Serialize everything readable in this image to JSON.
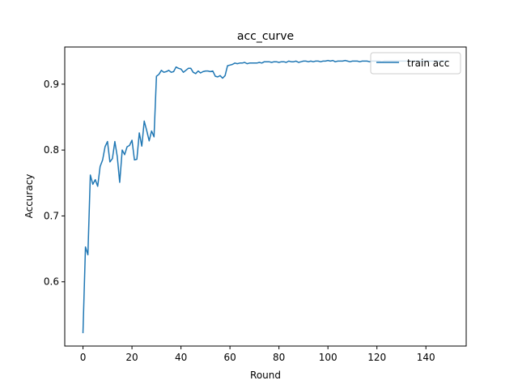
{
  "chart_data": {
    "type": "line",
    "title": "acc_curve",
    "xlabel": "Round",
    "ylabel": "Accuracy",
    "xlim": [
      -7.45,
      156.45
    ],
    "ylim": [
      0.5025,
      0.9564
    ],
    "xticks": [
      0,
      20,
      40,
      60,
      80,
      100,
      120,
      140
    ],
    "yticks": [
      0.6,
      0.7,
      0.8,
      0.9
    ],
    "xtick_labels": [
      "0",
      "20",
      "40",
      "60",
      "80",
      "100",
      "120",
      "140"
    ],
    "ytick_labels": [
      "0.6",
      "0.7",
      "0.8",
      "0.9"
    ],
    "grid": false,
    "legend_position": "top-right",
    "color": "#1f77b4",
    "series": [
      {
        "name": "train acc",
        "x": [
          0,
          1,
          2,
          3,
          4,
          5,
          6,
          7,
          8,
          9,
          10,
          11,
          12,
          13,
          14,
          15,
          16,
          17,
          18,
          19,
          20,
          21,
          22,
          23,
          24,
          25,
          26,
          27,
          28,
          29,
          30,
          31,
          32,
          33,
          34,
          35,
          36,
          37,
          38,
          39,
          40,
          41,
          42,
          43,
          44,
          45,
          46,
          47,
          48,
          49,
          50,
          51,
          52,
          53,
          54,
          55,
          56,
          57,
          58,
          59,
          60,
          61,
          62,
          63,
          64,
          65,
          66,
          67,
          68,
          69,
          70,
          71,
          72,
          73,
          74,
          75,
          76,
          77,
          78,
          79,
          80,
          81,
          82,
          83,
          84,
          85,
          86,
          87,
          88,
          89,
          90,
          91,
          92,
          93,
          94,
          95,
          96,
          97,
          98,
          99,
          100,
          101,
          102,
          103,
          104,
          105,
          106,
          107,
          108,
          109,
          110,
          111,
          112,
          113,
          114,
          115,
          116,
          117,
          118,
          119,
          120,
          121,
          122,
          123,
          124,
          125,
          126,
          127,
          128,
          129,
          130,
          131,
          132,
          133,
          134,
          135,
          136,
          137,
          138,
          139,
          140,
          141,
          142,
          143,
          144,
          145,
          146,
          147,
          148,
          149
        ],
        "values": [
          0.522,
          0.653,
          0.641,
          0.762,
          0.748,
          0.755,
          0.745,
          0.775,
          0.785,
          0.805,
          0.813,
          0.782,
          0.787,
          0.813,
          0.79,
          0.751,
          0.8,
          0.793,
          0.805,
          0.807,
          0.815,
          0.785,
          0.786,
          0.826,
          0.806,
          0.844,
          0.83,
          0.814,
          0.829,
          0.82,
          0.912,
          0.915,
          0.921,
          0.918,
          0.919,
          0.921,
          0.918,
          0.919,
          0.926,
          0.924,
          0.923,
          0.918,
          0.921,
          0.924,
          0.924,
          0.918,
          0.916,
          0.92,
          0.917,
          0.919,
          0.92,
          0.92,
          0.919,
          0.92,
          0.912,
          0.911,
          0.913,
          0.909,
          0.913,
          0.928,
          0.929,
          0.93,
          0.932,
          0.931,
          0.932,
          0.932,
          0.933,
          0.931,
          0.932,
          0.932,
          0.932,
          0.932,
          0.933,
          0.932,
          0.934,
          0.934,
          0.934,
          0.933,
          0.934,
          0.934,
          0.933,
          0.934,
          0.934,
          0.933,
          0.935,
          0.934,
          0.934,
          0.935,
          0.933,
          0.934,
          0.935,
          0.935,
          0.934,
          0.935,
          0.934,
          0.935,
          0.935,
          0.934,
          0.935,
          0.935,
          0.936,
          0.935,
          0.936,
          0.934,
          0.935,
          0.935,
          0.935,
          0.936,
          0.935,
          0.934,
          0.935,
          0.935,
          0.935,
          0.934,
          0.935,
          0.935,
          0.935,
          0.934,
          0.935,
          0.935,
          0.935,
          0.935,
          0.934,
          0.935,
          0.935,
          0.935,
          0.935,
          0.935,
          0.935,
          0.935,
          0.935,
          0.935,
          0.935,
          0.935,
          0.935,
          0.935,
          0.935,
          0.935,
          0.935,
          0.935,
          0.935,
          0.935,
          0.935,
          0.935,
          0.935,
          0.935,
          0.935,
          0.935,
          0.935,
          0.935
        ]
      }
    ]
  }
}
